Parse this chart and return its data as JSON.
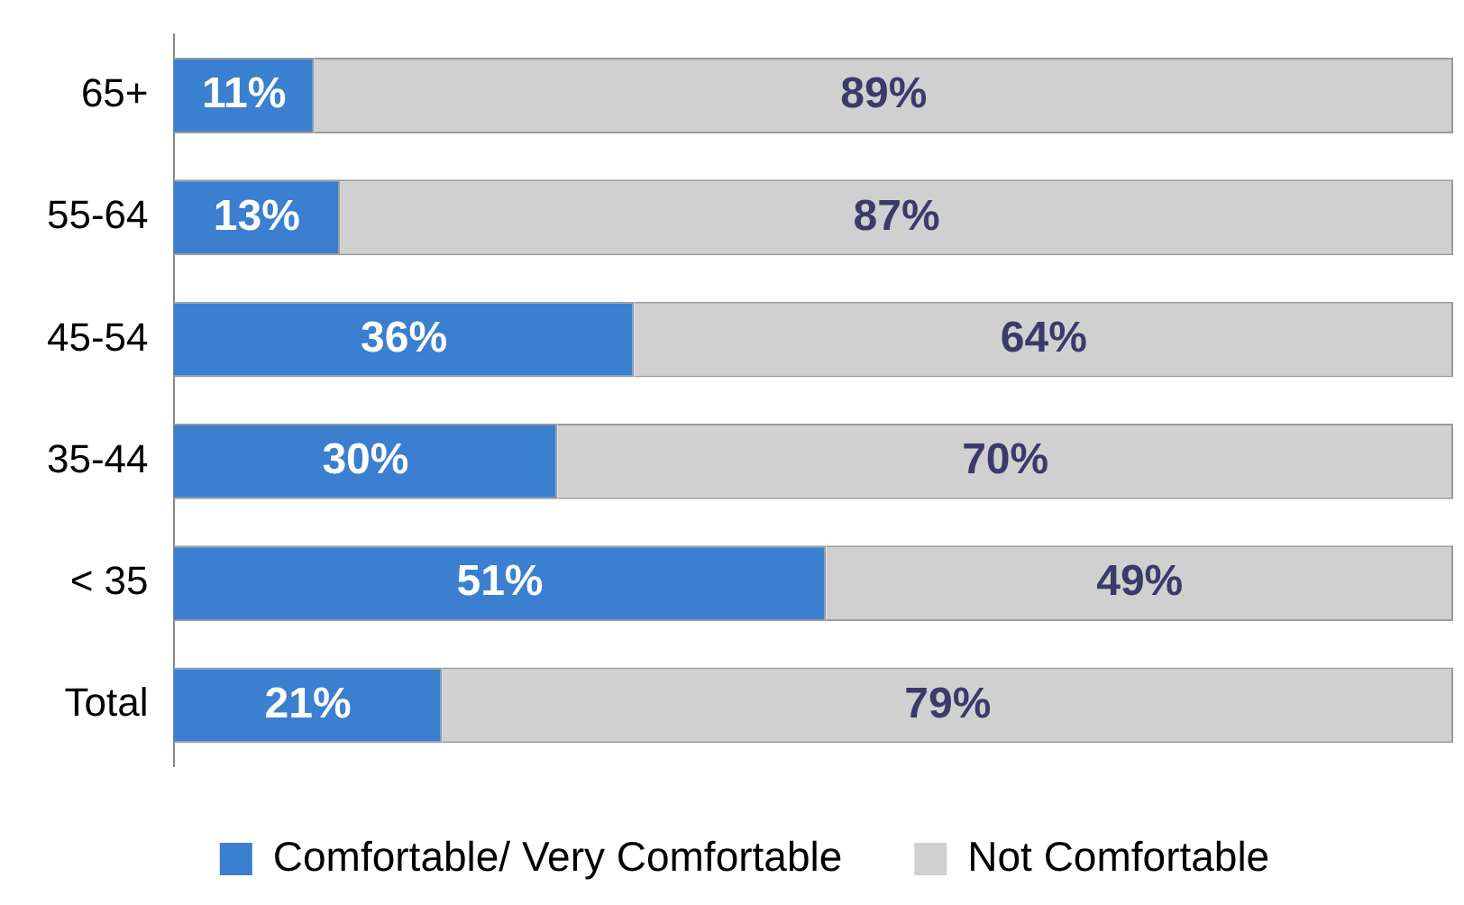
{
  "chart_data": {
    "type": "bar",
    "orientation": "horizontal",
    "stacked": true,
    "categories": [
      "65+",
      "55-64",
      "45-54",
      "35-44",
      "< 35",
      "Total"
    ],
    "series": [
      {
        "name": "Comfortable/ Very Comfortable",
        "color": "#3a7fd0",
        "values": [
          11,
          13,
          36,
          30,
          51,
          21
        ],
        "value_labels": [
          "11%",
          "13%",
          "36%",
          "30%",
          "51%",
          "21%"
        ]
      },
      {
        "name": "Not Comfortable",
        "color": "#d0d0d0",
        "values": [
          89,
          87,
          64,
          70,
          49,
          79
        ],
        "value_labels": [
          "89%",
          "87%",
          "64%",
          "70%",
          "49%",
          "79%"
        ]
      }
    ],
    "tick_labels": "y",
    "legend": "bottom"
  }
}
